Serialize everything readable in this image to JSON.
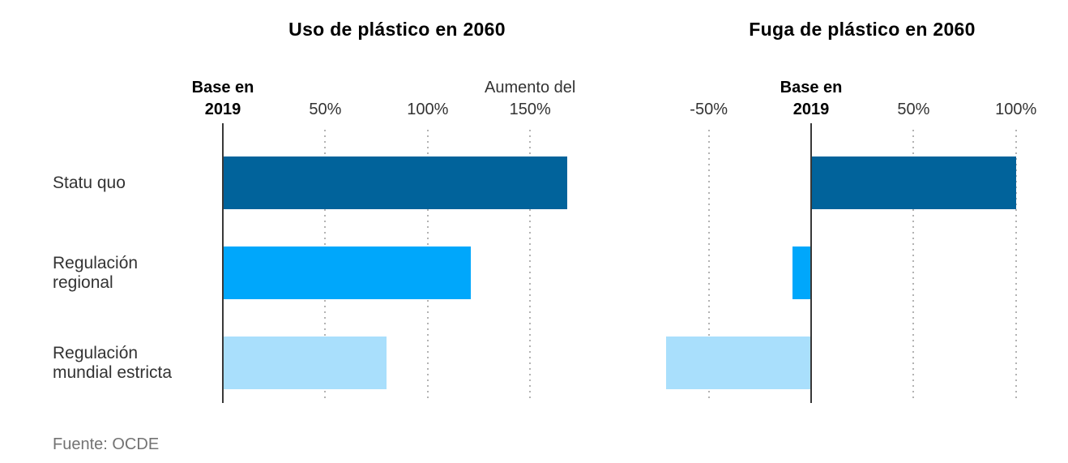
{
  "source": {
    "label": "Fuente: OCDE"
  },
  "colors": {
    "bars": [
      "#01639b",
      "#00a7fb",
      "#a9dffc"
    ],
    "axis": "#383838",
    "gridline": "#b3b3b3",
    "title": "#000000",
    "tick": "#333333",
    "category": "#333333",
    "source": "#737373"
  },
  "chart_data": [
    {
      "type": "bar",
      "orientation": "horizontal",
      "title": "Uso de plástico en 2060",
      "categories": [
        "Statu quo",
        "Regulación regional",
        "Regulación mundial estricta"
      ],
      "values": [
        168,
        121,
        80
      ],
      "value_unit": "% de cambio respecto a 2019",
      "xlim": [
        0,
        175
      ],
      "grid": "dotted-vertical",
      "show_category_labels": true,
      "ticks": [
        {
          "value": 0,
          "lines": [
            "Base en",
            "2019"
          ],
          "bold": true
        },
        {
          "value": 50,
          "lines": [
            "50%"
          ],
          "bold": false
        },
        {
          "value": 100,
          "lines": [
            "100%"
          ],
          "bold": false
        },
        {
          "value": 150,
          "lines": [
            "Aumento del",
            "150%"
          ],
          "bold": false
        }
      ]
    },
    {
      "type": "bar",
      "orientation": "horizontal",
      "title": "Fuga de plástico en 2060",
      "categories": [
        "Statu quo",
        "Regulación regional",
        "Regulación mundial estricta"
      ],
      "values": [
        100,
        -9,
        -71
      ],
      "value_unit": "% de cambio respecto a 2019",
      "xlim": [
        -75,
        105
      ],
      "grid": "dotted-vertical",
      "show_category_labels": false,
      "ticks": [
        {
          "value": -50,
          "lines": [
            "-50%"
          ],
          "bold": false
        },
        {
          "value": 0,
          "lines": [
            "Base en",
            "2019"
          ],
          "bold": true
        },
        {
          "value": 50,
          "lines": [
            "50%"
          ],
          "bold": false
        },
        {
          "value": 100,
          "lines": [
            "100%"
          ],
          "bold": false
        }
      ]
    }
  ]
}
